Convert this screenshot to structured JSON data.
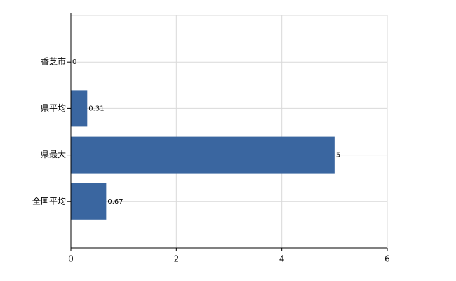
{
  "chart_data": {
    "type": "bar",
    "orientation": "horizontal",
    "categories": [
      "香芝市",
      "県平均",
      "県最大",
      "全国平均"
    ],
    "values": [
      0,
      0.31,
      5,
      0.67
    ],
    "color": "#3a66a0",
    "xlim": [
      0,
      6
    ],
    "xticks": [
      0,
      2,
      4,
      6
    ],
    "grid": true
  }
}
